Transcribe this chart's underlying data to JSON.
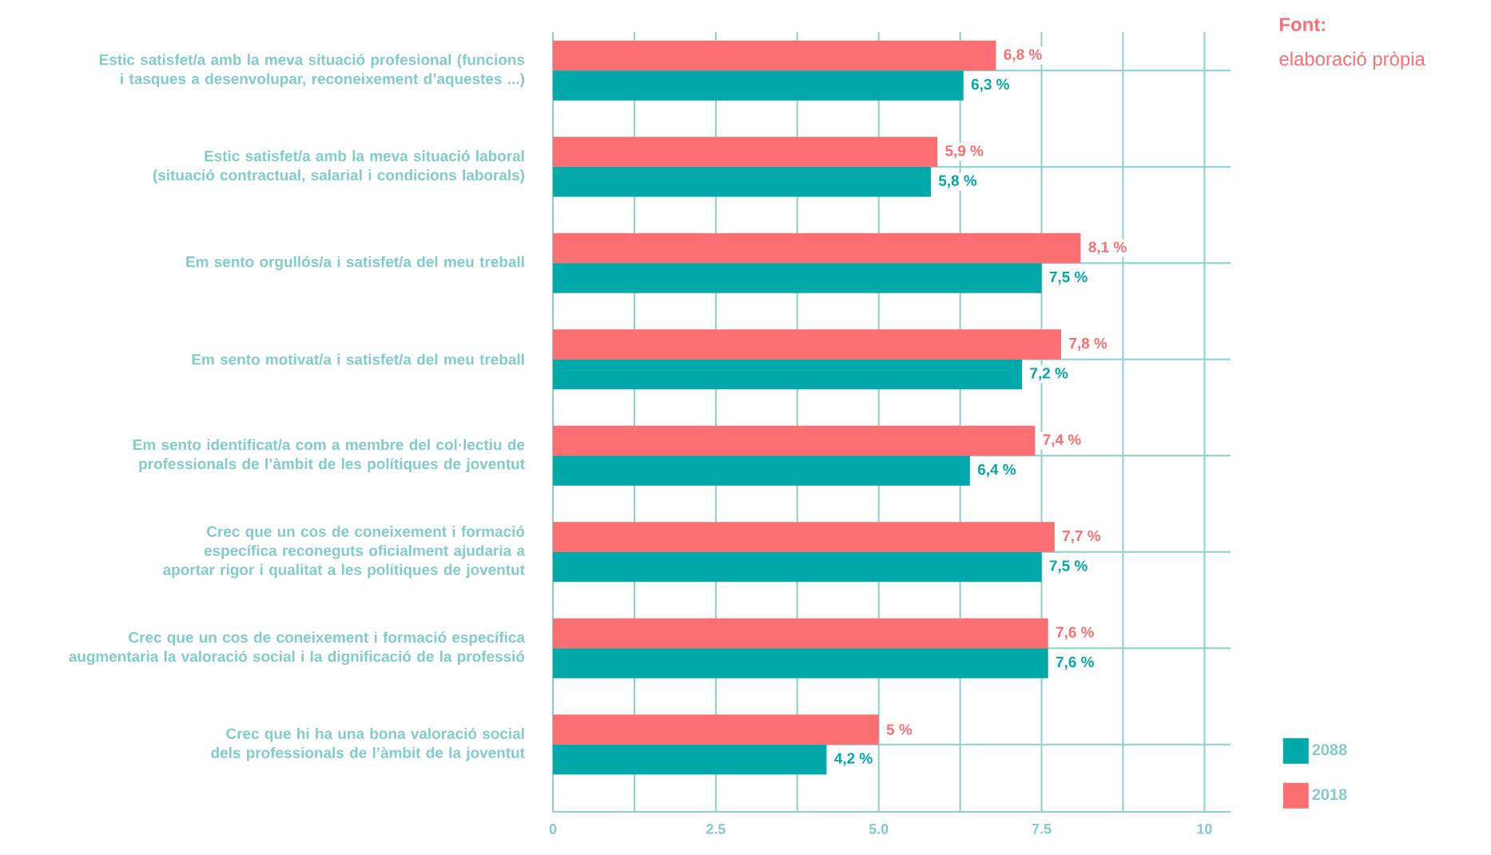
{
  "chart_data": {
    "type": "bar",
    "orientation": "horizontal",
    "categories": [
      "Estic satisfet/a amb la meva situació profesional (funcions i tasques a desenvolupar, reconeixement d’aquestes ...)",
      "Estic satisfet/a amb la meva situació laboral (situació contractual, salarial i condicions laborals)",
      "Em sento orgullós/a i satisfet/a del meu treball",
      "Em sento motivat/a i satisfet/a del meu treball",
      "Em sento identificat/a com a membre del col·lectiu de professionals de l’àmbit de les polítiques de joventut",
      "Crec que un cos de coneixement i formació específica reconeguts oficialment ajudaria a aportar rigor i qualitat a les polítiques de joventut",
      "Crec que un cos de coneixement i formació específica augmentaria la valoració social i la dignificació de la professió",
      "Crec que hi ha una bona valoració social dels professionals de l’àmbit de la joventut"
    ],
    "series": [
      {
        "name": "2088",
        "color": "#00a9a9",
        "values": [
          6.3,
          5.8,
          7.5,
          7.2,
          6.4,
          7.5,
          7.6,
          4.2
        ],
        "value_labels": [
          "6,3 %",
          "5,8 %",
          "7,5 %",
          "7,2 %",
          "6,4 %",
          "7,5 %",
          "7,6 %",
          "4,2 %"
        ]
      },
      {
        "name": "2018",
        "color": "#fb6f73",
        "values": [
          6.8,
          5.9,
          8.1,
          7.8,
          7.4,
          7.7,
          7.6,
          5
        ],
        "value_labels": [
          "6,8 %",
          "5,9 %",
          "8,1 %",
          "7,8 %",
          "7,4 %",
          "7,7 %",
          "7,6 %",
          "5 %"
        ]
      }
    ],
    "xlim": [
      0,
      10.4
    ],
    "xticks": [
      0,
      {
        "value": 1.25,
        "label": null
      },
      2.5,
      {
        "value": 3.75,
        "label": null
      },
      {
        "value": 5,
        "label": "5.0"
      },
      {
        "value": 6.25,
        "label": null
      },
      7.5,
      {
        "value": 8.75,
        "label": null
      },
      10
    ],
    "grid": true,
    "legend": "bottom right",
    "annotations": [
      "Font:",
      "elaboració pròpia"
    ]
  }
}
